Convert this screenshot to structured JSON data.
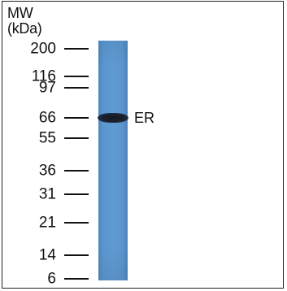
{
  "figure": {
    "header_line1": "MW",
    "header_line2": "(kDa)",
    "markers": [
      {
        "label": "200",
        "kda": 200
      },
      {
        "label": "116",
        "kda": 116
      },
      {
        "label": "97",
        "kda": 97
      },
      {
        "label": "66",
        "kda": 66
      },
      {
        "label": "55",
        "kda": 55
      },
      {
        "label": "36",
        "kda": 36
      },
      {
        "label": "31",
        "kda": 31
      },
      {
        "label": "21",
        "kda": 21
      },
      {
        "label": "14",
        "kda": 14
      },
      {
        "label": "6",
        "kda": 6
      }
    ],
    "band": {
      "label": "ER",
      "kda": 66
    },
    "colors": {
      "lane": "#5b97cf",
      "band": "#1a1f2a",
      "text": "#111111"
    }
  }
}
